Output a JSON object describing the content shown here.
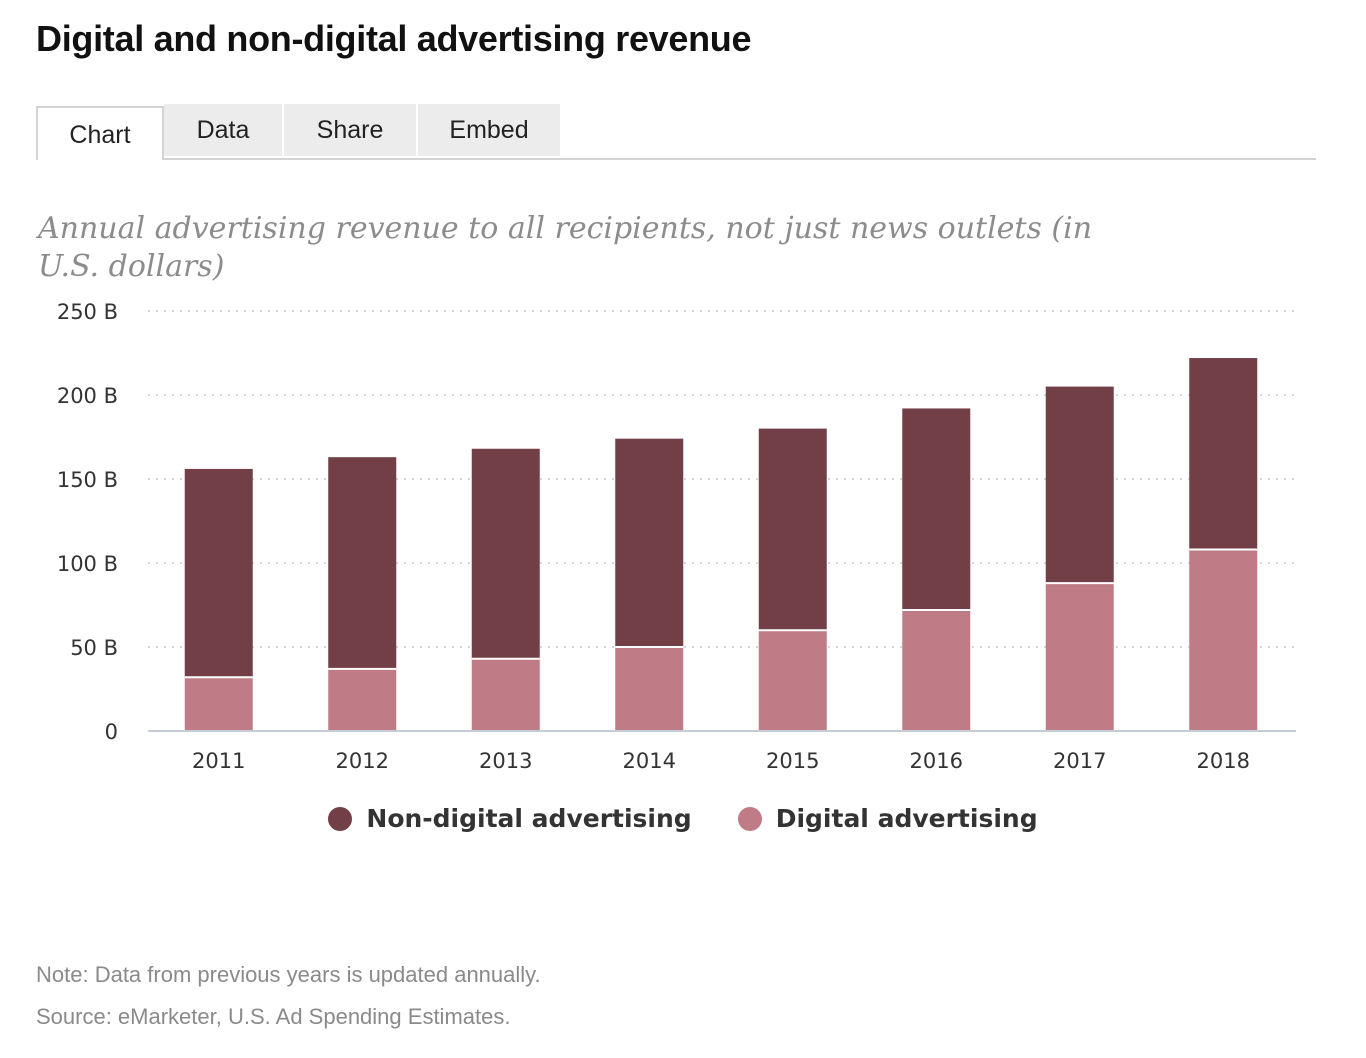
{
  "title": "Digital and non-digital advertising revenue",
  "tabs": [
    {
      "label": "Chart",
      "active": true
    },
    {
      "label": "Data",
      "active": false
    },
    {
      "label": "Share",
      "active": false
    },
    {
      "label": "Embed",
      "active": false
    }
  ],
  "subtitle": "Annual advertising revenue to all recipients, not just news outlets (in U.S. dollars)",
  "note": "Note: Data from previous years is updated annually.",
  "source": "Source: eMarketer, U.S. Ad Spending Estimates.",
  "colors": {
    "non_digital": "#733f47",
    "digital": "#bf7b86",
    "grid": "#d6d6d6",
    "axis": "#c5ccd6",
    "tick_text": "#333333"
  },
  "chart_data": {
    "type": "bar",
    "stacked": true,
    "categories": [
      "2011",
      "2012",
      "2013",
      "2014",
      "2015",
      "2016",
      "2017",
      "2018"
    ],
    "series": [
      {
        "name": "Non-digital advertising",
        "values": [
          124,
          126,
          125,
          124,
          120,
          120,
          117,
          114
        ]
      },
      {
        "name": "Digital advertising",
        "values": [
          32,
          37,
          43,
          50,
          60,
          72,
          88,
          108
        ]
      }
    ],
    "y_ticks": [
      "0",
      "50 B",
      "100 B",
      "150 B",
      "200 B",
      "250 B"
    ],
    "y_tick_values": [
      0,
      50,
      100,
      150,
      200,
      250
    ],
    "ylim": [
      0,
      250
    ],
    "grid": true,
    "legend_position": "bottom"
  },
  "legend": [
    {
      "label": "Non-digital advertising",
      "color": "#733f47"
    },
    {
      "label": "Digital advertising",
      "color": "#bf7b86"
    }
  ]
}
